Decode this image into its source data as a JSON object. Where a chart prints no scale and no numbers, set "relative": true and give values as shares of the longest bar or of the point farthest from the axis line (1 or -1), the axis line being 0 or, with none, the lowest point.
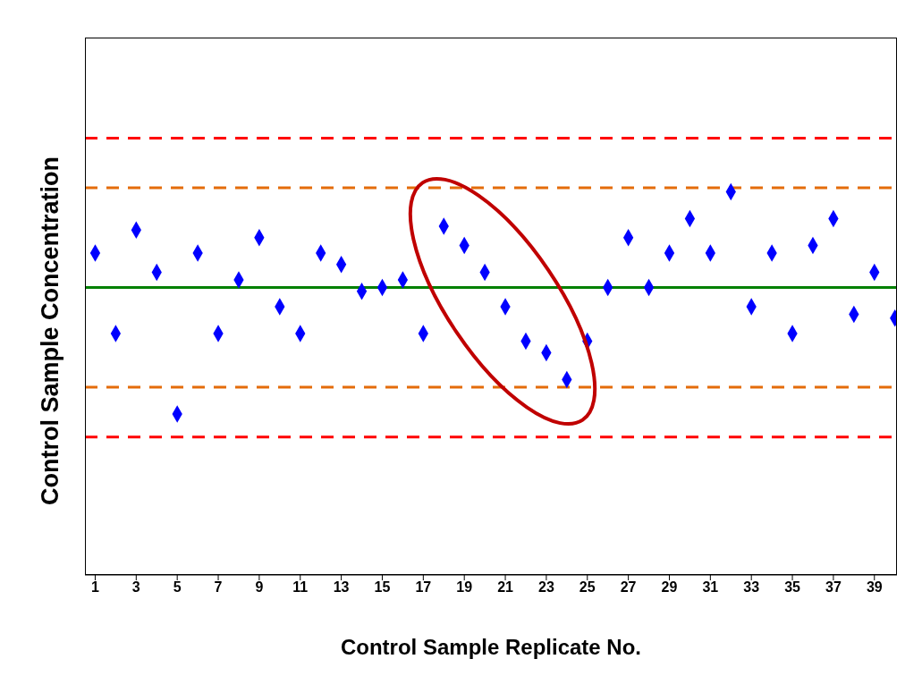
{
  "chart_data": {
    "type": "scatter",
    "xlabel": "Control Sample Replicate No.",
    "ylabel": "Control Sample Concentration",
    "relative": true,
    "marker": "diamond",
    "x": [
      1,
      2,
      3,
      4,
      5,
      6,
      7,
      8,
      9,
      10,
      11,
      12,
      13,
      14,
      15,
      16,
      17,
      18,
      19,
      20,
      21,
      22,
      23,
      24,
      25,
      26,
      27,
      28,
      29,
      30,
      31,
      32,
      33,
      34,
      35,
      36,
      37,
      38,
      39,
      40
    ],
    "xlim": [
      0.5,
      40.1
    ],
    "xticks": [
      1,
      3,
      5,
      7,
      9,
      11,
      13,
      15,
      17,
      19,
      21,
      23,
      25,
      27,
      29,
      31,
      33,
      35,
      37,
      39
    ],
    "series": [
      {
        "color": "#0000ff",
        "values": [
          0.84,
          0.63,
          0.9,
          0.79,
          0.42,
          0.84,
          0.63,
          0.77,
          0.88,
          0.7,
          0.63,
          0.84,
          0.81,
          0.74,
          0.75,
          0.77,
          0.63,
          0.91,
          0.86,
          0.79,
          0.7,
          0.61,
          0.58,
          0.51,
          0.61,
          0.75,
          0.88,
          0.75,
          0.84,
          0.93,
          0.84,
          1,
          0.7,
          0.84,
          0.63,
          0.86,
          0.93,
          0.68,
          0.79,
          0.67
        ]
      }
    ],
    "ref_lines": [
      {
        "axis": "y",
        "value": 1.14,
        "color": "#ff0000",
        "line_style": "dashed"
      },
      {
        "axis": "y",
        "value": 1.01,
        "color": "#e46c0a",
        "line_style": "dashed"
      },
      {
        "axis": "y",
        "value": 0.75,
        "color": "#008000",
        "line_style": "solid"
      },
      {
        "axis": "y",
        "value": 0.49,
        "color": "#e46c0a",
        "line_style": "dashed"
      },
      {
        "axis": "y",
        "value": 0.36,
        "color": "#ff0000",
        "line_style": "dashed"
      }
    ]
  }
}
